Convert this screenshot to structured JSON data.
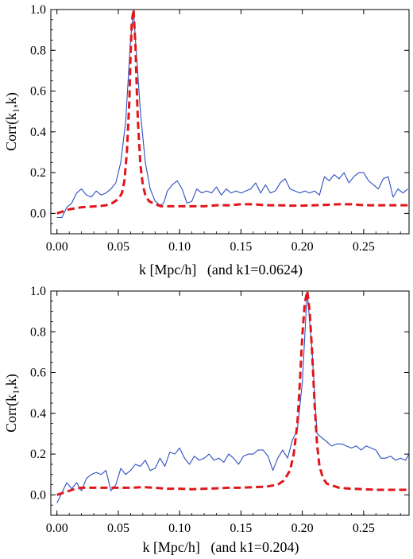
{
  "chart_data": [
    {
      "type": "line",
      "xlabel": "k [Mpc/h]   (and k1=0.0624)",
      "ylabel": "Corr(k₁,k)",
      "xlim": [
        -0.005,
        0.287
      ],
      "ylim": [
        -0.1,
        1.0
      ],
      "xticks": [
        "0.00",
        "0.05",
        "0.10",
        "0.15",
        "0.20",
        "0.25"
      ],
      "yticks": [
        "0.0",
        "0.2",
        "0.4",
        "0.6",
        "0.8",
        "1.0"
      ],
      "grid": false,
      "series": [
        {
          "color": "#2c4fc2",
          "style": "solid",
          "x": [
            0.0,
            0.004,
            0.008,
            0.012,
            0.016,
            0.02,
            0.024,
            0.028,
            0.032,
            0.036,
            0.04,
            0.044,
            0.048,
            0.052,
            0.056,
            0.06,
            0.0624,
            0.064,
            0.068,
            0.072,
            0.076,
            0.08,
            0.084,
            0.087,
            0.09,
            0.094,
            0.098,
            0.102,
            0.106,
            0.11,
            0.114,
            0.118,
            0.122,
            0.126,
            0.13,
            0.134,
            0.138,
            0.142,
            0.146,
            0.15,
            0.154,
            0.158,
            0.162,
            0.166,
            0.17,
            0.174,
            0.178,
            0.182,
            0.186,
            0.19,
            0.194,
            0.198,
            0.202,
            0.206,
            0.21,
            0.214,
            0.218,
            0.222,
            0.226,
            0.23,
            0.234,
            0.238,
            0.242,
            0.246,
            0.25,
            0.254,
            0.258,
            0.262,
            0.266,
            0.27,
            0.274,
            0.278,
            0.282,
            0.286
          ],
          "y": [
            -0.02,
            -0.02,
            0.03,
            0.05,
            0.1,
            0.12,
            0.09,
            0.08,
            0.11,
            0.09,
            0.1,
            0.12,
            0.15,
            0.25,
            0.45,
            0.85,
            1.0,
            0.85,
            0.5,
            0.25,
            0.12,
            0.06,
            0.04,
            0.05,
            0.11,
            0.14,
            0.16,
            0.12,
            0.05,
            0.06,
            0.12,
            0.1,
            0.11,
            0.1,
            0.13,
            0.09,
            0.12,
            0.1,
            0.11,
            0.1,
            0.11,
            0.12,
            0.15,
            0.1,
            0.14,
            0.1,
            0.11,
            0.15,
            0.17,
            0.12,
            0.11,
            0.1,
            0.11,
            0.1,
            0.11,
            0.09,
            0.18,
            0.16,
            0.19,
            0.17,
            0.2,
            0.15,
            0.18,
            0.2,
            0.2,
            0.16,
            0.14,
            0.12,
            0.17,
            0.18,
            0.08,
            0.12,
            0.1,
            0.12
          ]
        },
        {
          "color": "#e0161b",
          "style": "dashed",
          "x": [
            0.0,
            0.005,
            0.01,
            0.015,
            0.02,
            0.025,
            0.03,
            0.035,
            0.04,
            0.045,
            0.05,
            0.053,
            0.055,
            0.057,
            0.059,
            0.06,
            0.061,
            0.0624,
            0.064,
            0.065,
            0.066,
            0.068,
            0.07,
            0.072,
            0.075,
            0.08,
            0.085,
            0.09,
            0.1,
            0.11,
            0.12,
            0.13,
            0.14,
            0.15,
            0.16,
            0.17,
            0.18,
            0.19,
            0.2,
            0.21,
            0.22,
            0.23,
            0.24,
            0.25,
            0.26,
            0.27,
            0.28,
            0.287
          ],
          "y": [
            0.0,
            0.01,
            0.02,
            0.025,
            0.03,
            0.032,
            0.034,
            0.036,
            0.04,
            0.05,
            0.07,
            0.1,
            0.16,
            0.3,
            0.55,
            0.78,
            0.94,
            1.0,
            0.82,
            0.62,
            0.45,
            0.24,
            0.14,
            0.09,
            0.06,
            0.045,
            0.035,
            0.035,
            0.035,
            0.035,
            0.035,
            0.04,
            0.04,
            0.045,
            0.045,
            0.04,
            0.04,
            0.038,
            0.038,
            0.04,
            0.042,
            0.045,
            0.045,
            0.04,
            0.04,
            0.04,
            0.04,
            0.04
          ]
        }
      ]
    },
    {
      "type": "line",
      "xlabel": "k [Mpc/h]   (and k1=0.204)",
      "ylabel": "Corr(k₁,k)",
      "xlim": [
        -0.005,
        0.287
      ],
      "ylim": [
        -0.1,
        1.0
      ],
      "xticks": [
        "0.00",
        "0.05",
        "0.10",
        "0.15",
        "0.20",
        "0.25"
      ],
      "yticks": [
        "0.0",
        "0.2",
        "0.4",
        "0.6",
        "0.8",
        "1.0"
      ],
      "grid": false,
      "series": [
        {
          "color": "#2c4fc2",
          "style": "solid",
          "x": [
            0.0,
            0.004,
            0.008,
            0.012,
            0.016,
            0.02,
            0.024,
            0.028,
            0.032,
            0.036,
            0.04,
            0.044,
            0.048,
            0.052,
            0.056,
            0.06,
            0.064,
            0.068,
            0.072,
            0.076,
            0.08,
            0.084,
            0.088,
            0.092,
            0.096,
            0.1,
            0.104,
            0.108,
            0.112,
            0.116,
            0.12,
            0.124,
            0.128,
            0.132,
            0.136,
            0.14,
            0.144,
            0.148,
            0.152,
            0.156,
            0.16,
            0.164,
            0.168,
            0.172,
            0.176,
            0.18,
            0.184,
            0.188,
            0.192,
            0.196,
            0.2,
            0.204,
            0.208,
            0.212,
            0.216,
            0.22,
            0.224,
            0.228,
            0.232,
            0.236,
            0.24,
            0.244,
            0.248,
            0.252,
            0.256,
            0.26,
            0.264,
            0.268,
            0.272,
            0.276,
            0.28,
            0.284,
            0.287
          ],
          "y": [
            -0.04,
            0.01,
            0.06,
            0.03,
            0.06,
            0.02,
            0.08,
            0.1,
            0.11,
            0.1,
            0.12,
            0.02,
            0.05,
            0.13,
            0.1,
            0.12,
            0.15,
            0.14,
            0.17,
            0.12,
            0.13,
            0.18,
            0.14,
            0.21,
            0.2,
            0.23,
            0.18,
            0.15,
            0.19,
            0.17,
            0.18,
            0.2,
            0.17,
            0.18,
            0.16,
            0.2,
            0.18,
            0.15,
            0.19,
            0.2,
            0.2,
            0.22,
            0.22,
            0.19,
            0.12,
            0.18,
            0.22,
            0.18,
            0.27,
            0.32,
            0.55,
            1.0,
            0.7,
            0.3,
            0.28,
            0.26,
            0.24,
            0.25,
            0.25,
            0.24,
            0.23,
            0.24,
            0.22,
            0.24,
            0.23,
            0.22,
            0.18,
            0.18,
            0.19,
            0.17,
            0.18,
            0.17,
            0.2
          ]
        },
        {
          "color": "#e0161b",
          "style": "dashed",
          "x": [
            0.0,
            0.005,
            0.01,
            0.015,
            0.02,
            0.03,
            0.04,
            0.05,
            0.06,
            0.07,
            0.08,
            0.09,
            0.1,
            0.11,
            0.12,
            0.13,
            0.14,
            0.15,
            0.16,
            0.17,
            0.175,
            0.18,
            0.185,
            0.19,
            0.193,
            0.196,
            0.198,
            0.2,
            0.202,
            0.204,
            0.206,
            0.208,
            0.21,
            0.212,
            0.214,
            0.217,
            0.22,
            0.225,
            0.23,
            0.24,
            0.25,
            0.26,
            0.27,
            0.28,
            0.287
          ],
          "y": [
            0.0,
            0.01,
            0.02,
            0.03,
            0.035,
            0.035,
            0.035,
            0.035,
            0.035,
            0.038,
            0.035,
            0.03,
            0.03,
            0.028,
            0.03,
            0.032,
            0.035,
            0.035,
            0.038,
            0.04,
            0.045,
            0.05,
            0.07,
            0.12,
            0.2,
            0.35,
            0.55,
            0.78,
            0.94,
            1.0,
            0.9,
            0.7,
            0.45,
            0.25,
            0.14,
            0.08,
            0.055,
            0.045,
            0.035,
            0.03,
            0.028,
            0.025,
            0.025,
            0.025,
            0.025
          ]
        }
      ]
    }
  ]
}
